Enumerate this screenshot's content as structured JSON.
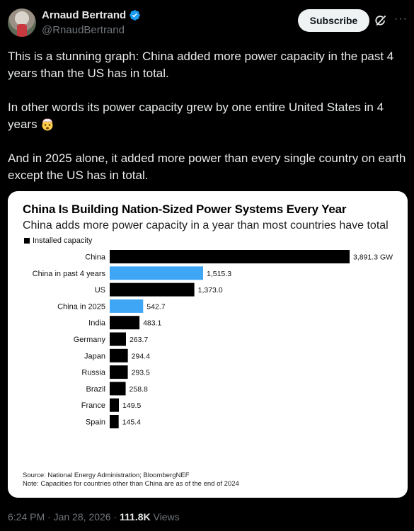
{
  "author": {
    "name": "Arnaud Bertrand",
    "handle": "@RnaudBertrand"
  },
  "actions": {
    "subscribe_label": "Subscribe",
    "grok_icon": "grok-icon",
    "more_icon": "more-icon",
    "more_label": "···"
  },
  "tweet": {
    "para1": "This is a stunning graph: China added more power capacity in the past 4 years than the US has in total.",
    "para2": "In other words its power capacity grew by one entire United States in 4 years",
    "para2_emoji": "exploding-head-emoji",
    "para3": "And in 2025 alone, it added more power than every single country on earth except the US has in total."
  },
  "chart": {
    "title": "China Is Building Nation-Sized Power Systems Every Year",
    "subtitle": "China adds more power capacity in a year than most countries have total",
    "legend_label": "Installed capacity",
    "source_line1": "Source: National Energy Administration; BloombergNEF",
    "source_line2": "Note: Capacities for countries other than China are as of the end of 2024"
  },
  "chart_data": {
    "type": "bar",
    "orientation": "horizontal",
    "categories": [
      "China",
      "China in past 4 years",
      "US",
      "China in 2025",
      "India",
      "Germany",
      "Japan",
      "Russia",
      "Brazil",
      "France",
      "Spain"
    ],
    "values": [
      3891.3,
      1515.3,
      1373.0,
      542.7,
      483.1,
      263.7,
      294.4,
      293.5,
      258.8,
      149.5,
      145.4
    ],
    "value_labels": [
      "3,891.3 GW",
      "1,515.3",
      "1,373.0",
      "542.7",
      "483.1",
      "263.7",
      "294.4",
      "293.5",
      "258.8",
      "149.5",
      "145.4"
    ],
    "colors": [
      "#000000",
      "#3ea6f5",
      "#000000",
      "#3ea6f5",
      "#000000",
      "#000000",
      "#000000",
      "#000000",
      "#000000",
      "#000000",
      "#000000"
    ],
    "xlim": [
      0,
      3891.3
    ],
    "grid": false,
    "legend": "top-left"
  },
  "footer": {
    "time": "6:24 PM",
    "date": "Jan 28, 2026",
    "views_count": "111.8K",
    "views_label": "Views"
  },
  "colors": {
    "background": "#000000",
    "verified": "#1d9bf0",
    "highlight_bar": "#3ea6f5"
  }
}
